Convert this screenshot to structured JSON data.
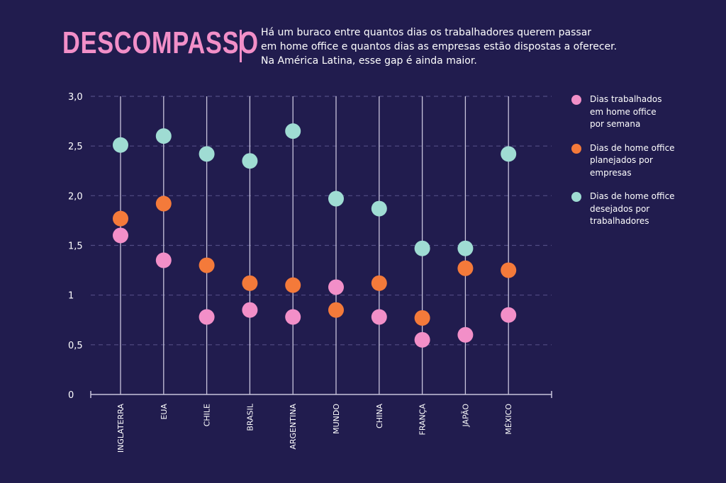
{
  "header": {
    "title": "DESCOMPASSO",
    "subtitle_lines": [
      "Há um buraco entre quantos dias os trabalhadores querem passar",
      "em home office e quantos dias as empresas estão dispostas a oferecer.",
      "Na América Latina, esse gap é ainda maior."
    ]
  },
  "legend": [
    {
      "lines": [
        "Dias trabalhados",
        "em home office",
        "por semana"
      ],
      "color": "#f28fc8"
    },
    {
      "lines": [
        "Dias de home office",
        "planejados por",
        "empresas"
      ],
      "color": "#f47a3a"
    },
    {
      "lines": [
        "Dias de home office",
        "desejados por",
        "trabalhadores"
      ],
      "color": "#9fdcd3"
    }
  ],
  "colors": {
    "background": "#211c4e",
    "axis": "#c8c4dc",
    "grid": "#524c84",
    "pink": "#f28fc8",
    "orange": "#f47a3a",
    "teal": "#9fdcd3"
  },
  "chart_data": {
    "type": "scatter",
    "categories": [
      "INGLATERRA",
      "EUA",
      "CHILE",
      "BRASIL",
      "ARGENTINA",
      "MUNDO",
      "CHINA",
      "FRANÇA",
      "JAPÃO",
      "MÉXICO"
    ],
    "series": [
      {
        "name": "Dias trabalhados em home office por semana",
        "color": "#f28fc8",
        "values": [
          1.6,
          1.35,
          0.78,
          0.85,
          0.78,
          1.08,
          0.78,
          0.55,
          0.6,
          0.8
        ]
      },
      {
        "name": "Dias de home office planejados por empresas",
        "color": "#f47a3a",
        "values": [
          1.77,
          1.92,
          1.3,
          1.12,
          1.1,
          0.85,
          1.12,
          0.77,
          1.27,
          1.25
        ]
      },
      {
        "name": "Dias de home office desejados por trabalhadores",
        "color": "#9fdcd3",
        "values": [
          2.51,
          2.6,
          2.42,
          2.35,
          2.65,
          1.97,
          1.87,
          1.47,
          1.47,
          2.42
        ]
      }
    ],
    "yticks": [
      0,
      0.5,
      1,
      1.5,
      2.0,
      2.5,
      3.0
    ],
    "ytick_labels": [
      "0",
      "0,5",
      "1",
      "1,5",
      "2,0",
      "2,5",
      "3,0"
    ],
    "ylim": [
      0,
      3
    ],
    "xlabel": "",
    "ylabel": "",
    "grid": true,
    "legend_position": "right"
  }
}
